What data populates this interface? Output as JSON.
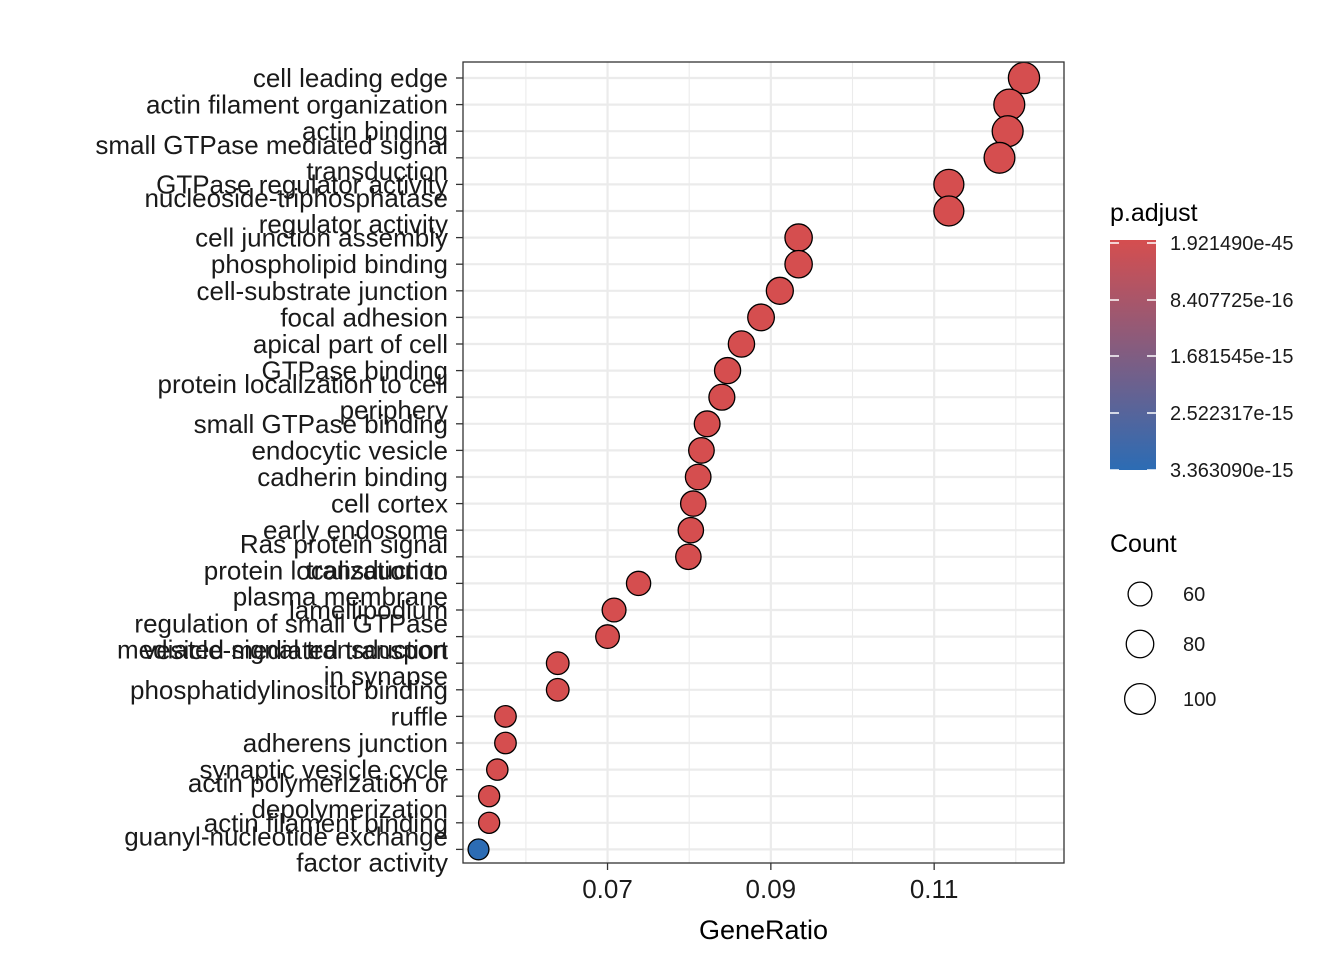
{
  "chart_data": {
    "type": "scatter",
    "xlabel": "GeneRatio",
    "ylabel": "",
    "xlim": [
      0.0523,
      0.1259
    ],
    "x_ticks": [
      "0.07",
      "0.09",
      "0.11"
    ],
    "x_tick_values": [
      0.07,
      0.09,
      0.11
    ],
    "grid": true,
    "legend_placement": "right",
    "color_scale": {
      "title": "p.adjust",
      "low_color": "#d54e4f",
      "high_color": "#2c6cb4",
      "labels": [
        "1.921490e-45",
        "8.407725e-16",
        "1.681545e-15",
        "2.522317e-15",
        "3.363090e-15"
      ]
    },
    "size_scale": {
      "title": "Count",
      "labels": [
        "60",
        "80",
        "100"
      ],
      "values": [
        60,
        80,
        100
      ]
    },
    "points": [
      {
        "term": [
          "cell leading edge"
        ],
        "x": 0.121,
        "count": 103,
        "color": "#d54e4f"
      },
      {
        "term": [
          "actin filament organization"
        ],
        "x": 0.1192,
        "count": 101,
        "color": "#d54e4f"
      },
      {
        "term": [
          "actin binding"
        ],
        "x": 0.119,
        "count": 101,
        "color": "#d54e4f"
      },
      {
        "term": [
          "small GTPase mediated signal",
          "transduction"
        ],
        "x": 0.118,
        "count": 100,
        "color": "#d54e4f"
      },
      {
        "term": [
          "GTPase regulator activity"
        ],
        "x": 0.1118,
        "count": 95,
        "color": "#d54e4f"
      },
      {
        "term": [
          "nucleoside-triphosphatase",
          "regulator activity"
        ],
        "x": 0.1118,
        "count": 95,
        "color": "#d54e4f"
      },
      {
        "term": [
          "cell junction assembly"
        ],
        "x": 0.0934,
        "count": 79,
        "color": "#d54e4f"
      },
      {
        "term": [
          "phospholipid binding"
        ],
        "x": 0.0934,
        "count": 79,
        "color": "#d54e4f"
      },
      {
        "term": [
          "cell-substrate junction"
        ],
        "x": 0.0911,
        "count": 77,
        "color": "#d54e4f"
      },
      {
        "term": [
          "focal adhesion"
        ],
        "x": 0.0888,
        "count": 75,
        "color": "#d54e4f"
      },
      {
        "term": [
          "apical part of cell"
        ],
        "x": 0.0864,
        "count": 73,
        "color": "#d54e4f"
      },
      {
        "term": [
          "GTPase binding"
        ],
        "x": 0.0847,
        "count": 72,
        "color": "#d54e4f"
      },
      {
        "term": [
          "protein localization to cell",
          "periphery"
        ],
        "x": 0.084,
        "count": 71,
        "color": "#d54e4f"
      },
      {
        "term": [
          "small GTPase binding"
        ],
        "x": 0.0822,
        "count": 70,
        "color": "#d54e4f"
      },
      {
        "term": [
          "endocytic vesicle"
        ],
        "x": 0.0815,
        "count": 69,
        "color": "#d54e4f"
      },
      {
        "term": [
          "cadherin binding"
        ],
        "x": 0.0811,
        "count": 69,
        "color": "#d54e4f"
      },
      {
        "term": [
          "cell cortex"
        ],
        "x": 0.0805,
        "count": 68,
        "color": "#d54e4f"
      },
      {
        "term": [
          "early endosome"
        ],
        "x": 0.0802,
        "count": 68,
        "color": "#d54e4f"
      },
      {
        "term": [
          "Ras protein signal",
          "transduction"
        ],
        "x": 0.0799,
        "count": 68,
        "color": "#d54e4f"
      },
      {
        "term": [
          "protein localization to",
          "plasma membrane"
        ],
        "x": 0.0738,
        "count": 62,
        "color": "#d54e4f"
      },
      {
        "term": [
          "lamellipodium"
        ],
        "x": 0.0708,
        "count": 60,
        "color": "#d54e4f"
      },
      {
        "term": [
          "regulation of small GTPase",
          "mediated signal transduction"
        ],
        "x": 0.07,
        "count": 59,
        "color": "#d54e4f"
      },
      {
        "term": [
          "vesicle-mediated transport",
          "in synapse"
        ],
        "x": 0.0639,
        "count": 54,
        "color": "#d54e4f"
      },
      {
        "term": [
          "phosphatidylinositol binding"
        ],
        "x": 0.0639,
        "count": 54,
        "color": "#d54e4f"
      },
      {
        "term": [
          "ruffle"
        ],
        "x": 0.0575,
        "count": 49,
        "color": "#d54e4f"
      },
      {
        "term": [
          "adherens junction"
        ],
        "x": 0.0575,
        "count": 49,
        "color": "#d54e4f"
      },
      {
        "term": [
          "synaptic vesicle cycle"
        ],
        "x": 0.0565,
        "count": 48,
        "color": "#d54e4f"
      },
      {
        "term": [
          "actin polymerization or",
          "depolymerization"
        ],
        "x": 0.0555,
        "count": 47,
        "color": "#d54e4f"
      },
      {
        "term": [
          "actin filament binding"
        ],
        "x": 0.0555,
        "count": 47,
        "color": "#d54e4f"
      },
      {
        "term": [
          "guanyl-nucleotide exchange",
          "factor activity"
        ],
        "x": 0.0542,
        "count": 46,
        "color": "#2c6cb4"
      }
    ]
  }
}
